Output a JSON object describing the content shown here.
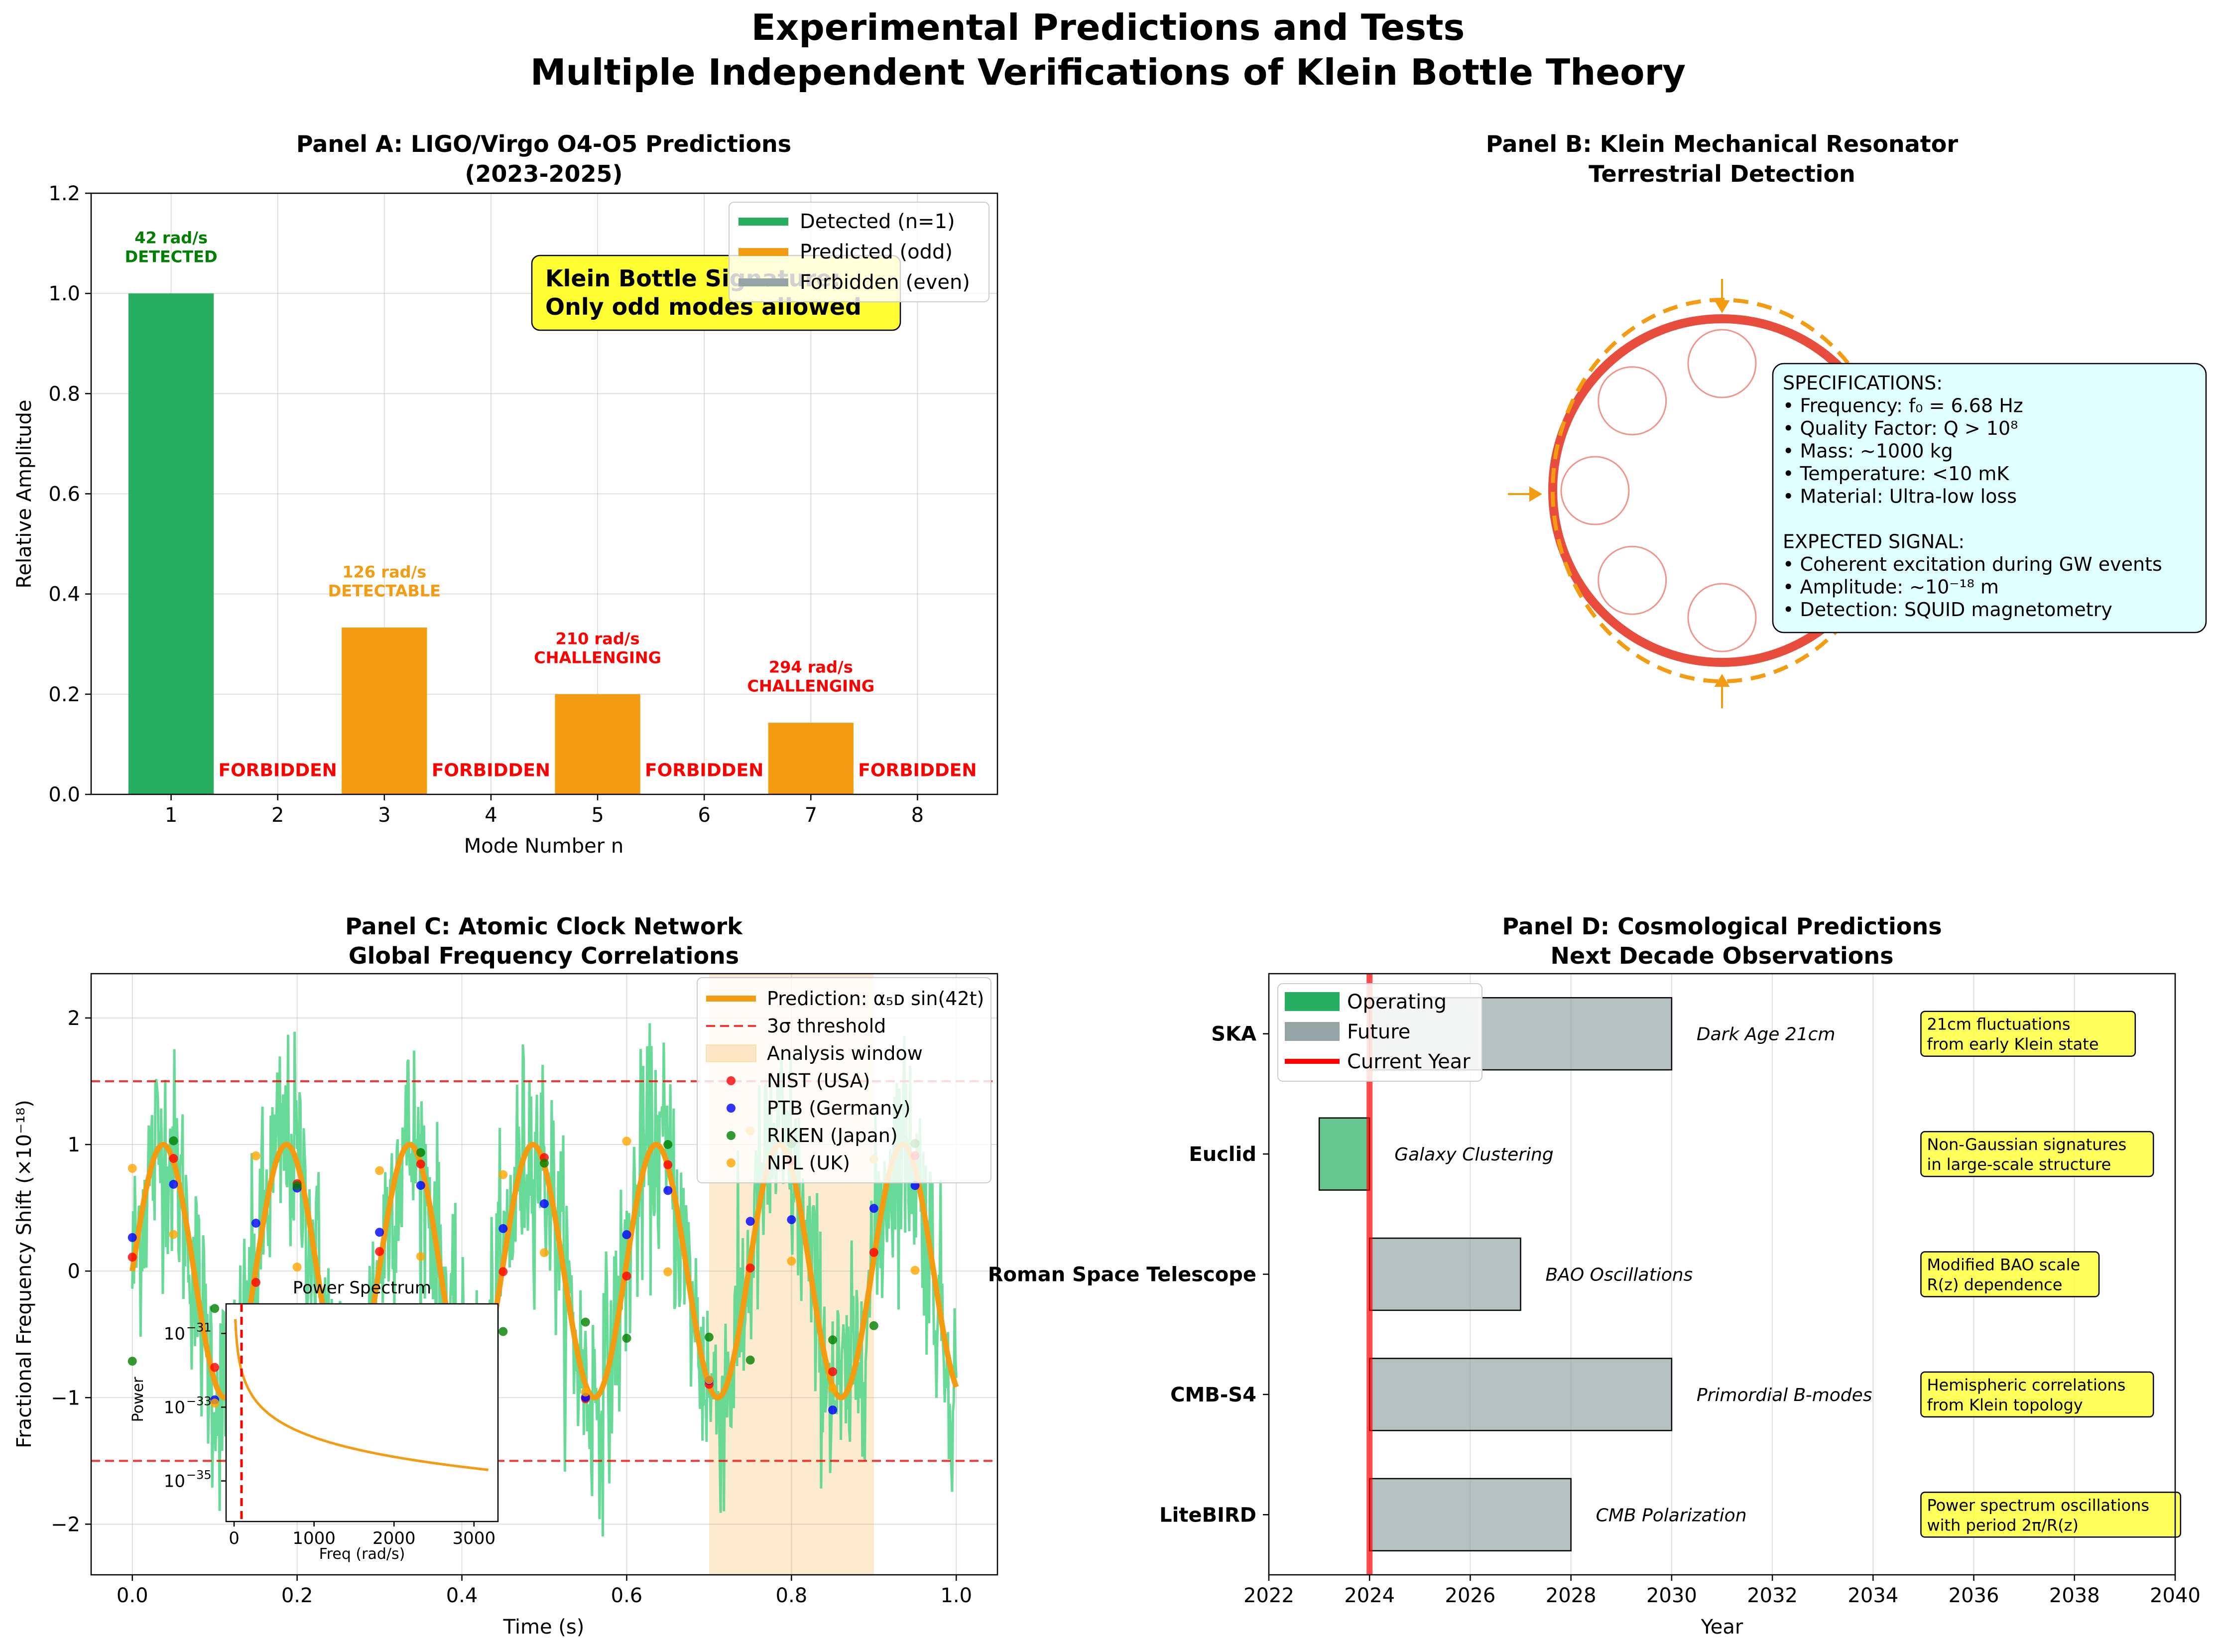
{
  "figure": {
    "title_line1": "Experimental Predictions and Tests",
    "title_line2": "Multiple Independent Verifications of Klein Bottle Theory"
  },
  "colors": {
    "green": "#27ae60",
    "orange": "#f39c12",
    "gray": "#95a5a6",
    "red": "#ff0000",
    "ring": "#e74c3c",
    "signal": "#58d68d",
    "yellow": "#ffff33",
    "spec_bg": "#e0ffff"
  },
  "panelA": {
    "title_line1": "Panel A: LIGO/Virgo O4-O5 Predictions",
    "title_line2": "(2023-2025)",
    "xlabel": "Mode Number n",
    "ylabel": "Relative Amplitude",
    "annotation_line1": "Klein Bottle Signature:",
    "annotation_line2": "Only odd modes allowed",
    "forbidden_label": "FORBIDDEN",
    "legend": [
      "Detected (n=1)",
      "Predicted (odd)",
      "Forbidden (even)"
    ],
    "chart_data": {
      "type": "bar",
      "categories": [
        "1",
        "2",
        "3",
        "4",
        "5",
        "6",
        "7",
        "8"
      ],
      "values": [
        1.0,
        0,
        0.333,
        0,
        0.2,
        0,
        0.143,
        0
      ],
      "status": [
        "detected",
        "forbidden",
        "predicted",
        "forbidden",
        "predicted",
        "forbidden",
        "predicted",
        "forbidden"
      ],
      "bar_labels": [
        {
          "mode": 1,
          "line1": "42 rad/s",
          "line2": "DETECTED",
          "color": "#008000"
        },
        {
          "mode": 3,
          "line1": "126 rad/s",
          "line2": "DETECTABLE",
          "color": "#f39c12"
        },
        {
          "mode": 5,
          "line1": "210 rad/s",
          "line2": "CHALLENGING",
          "color": "#ff0000"
        },
        {
          "mode": 7,
          "line1": "294 rad/s",
          "line2": "CHALLENGING",
          "color": "#ff0000"
        }
      ],
      "ylim": [
        0,
        1.2
      ],
      "yticks": [
        "0.0",
        "0.2",
        "0.4",
        "0.6",
        "0.8",
        "1.0",
        "1.2"
      ],
      "grid": true,
      "legend_position": "top-right"
    }
  },
  "panelB": {
    "title_line1": "Panel B: Klein Mechanical Resonator",
    "title_line2": "Terrestrial Detection",
    "spec_lines": [
      "SPECIFICATIONS:",
      "• Frequency: f₀ = 6.68 Hz",
      "• Quality Factor: Q > 10⁸",
      "• Mass: ~1000 kg",
      "• Temperature: <10 mK",
      "• Material: Ultra-low loss",
      "",
      "EXPECTED SIGNAL:",
      "• Coherent excitation during GW events",
      "• Amplitude: ~10⁻¹⁸ m",
      "• Detection: SQUID magnetometry"
    ]
  },
  "panelC": {
    "title_line1": "Panel C: Atomic Clock Network",
    "title_line2": "Global Frequency Correlations",
    "xlabel": "Time (s)",
    "ylabel": "Fractional Frequency Shift (×10⁻¹⁸)",
    "legend": [
      "Prediction: α₅ᴅ sin(42t)",
      "3σ threshold",
      "Analysis window",
      "NIST (USA)",
      "PTB (Germany)",
      "RIKEN (Japan)",
      "NPL (UK)"
    ],
    "inset": {
      "title": "Power Spectrum",
      "xlabel": "Freq (rad/s)",
      "ylabel": "Power",
      "xticks": [
        "0",
        "1000",
        "2000",
        "3000"
      ],
      "ytick_base": "10",
      "ytick_exponents": [
        "−31",
        "−33",
        "−35"
      ]
    },
    "chart_data": {
      "type": "line",
      "xlim": [
        -0.05,
        1.05
      ],
      "ylim": [
        -2.4,
        2.35
      ],
      "xticks": [
        "0.0",
        "0.2",
        "0.4",
        "0.6",
        "0.8",
        "1.0"
      ],
      "yticks": [
        "−2",
        "−1",
        "0",
        "1",
        "2"
      ],
      "prediction": {
        "amplitude": 1.0,
        "omega": 42
      },
      "threshold": 1.5,
      "analysis_window": [
        0.7,
        0.9
      ],
      "noise_std": 0.45,
      "stations": [
        {
          "name": "NIST (USA)",
          "color": "#ff0000",
          "phase_offset": 0.0
        },
        {
          "name": "PTB (Germany)",
          "color": "#0000ff",
          "phase_offset": 0.05
        },
        {
          "name": "RIKEN (Japan)",
          "color": "#008000",
          "phase_offset": -0.1
        },
        {
          "name": "NPL (UK)",
          "color": "#ffa500",
          "phase_offset": 0.15
        }
      ],
      "station_times": [
        0.0,
        0.05,
        0.1,
        0.15,
        0.2,
        0.25,
        0.3,
        0.35,
        0.4,
        0.45,
        0.5,
        0.55,
        0.6,
        0.65,
        0.7,
        0.75,
        0.8,
        0.85,
        0.9,
        0.95
      ],
      "grid": true,
      "legend_position": "top-right"
    }
  },
  "panelD": {
    "title_line1": "Panel D: Cosmological Predictions",
    "title_line2": "Next Decade Observations",
    "xlabel": "Year",
    "legend": [
      "Operating",
      "Future",
      "Current Year"
    ],
    "chart_data": {
      "type": "bar",
      "orientation": "horizontal",
      "xlim": [
        2022,
        2040
      ],
      "xticks": [
        "2022",
        "2024",
        "2026",
        "2028",
        "2030",
        "2032",
        "2034",
        "2036",
        "2038",
        "2040"
      ],
      "current_year": 2024,
      "missions": [
        {
          "name": "LiteBIRD",
          "start": 2024,
          "end": 2028,
          "status": "future",
          "measurement": "CMB Polarization",
          "prediction": [
            "Power spectrum oscillations",
            "with period 2π/R(z)"
          ]
        },
        {
          "name": "CMB-S4",
          "start": 2024,
          "end": 2030,
          "status": "future",
          "measurement": "Primordial B-modes",
          "prediction": [
            "Hemispheric correlations",
            "from Klein topology"
          ]
        },
        {
          "name": "Roman Space Telescope",
          "start": 2024,
          "end": 2027,
          "status": "future",
          "measurement": "BAO Oscillations",
          "prediction": [
            "Modified BAO scale",
            "R(z) dependence"
          ]
        },
        {
          "name": "Euclid",
          "start": 2023,
          "end": 2024,
          "status": "operating",
          "measurement": "Galaxy Clustering",
          "prediction": [
            "Non-Gaussian signatures",
            "in large-scale structure"
          ]
        },
        {
          "name": "SKA",
          "start": 2024,
          "end": 2030,
          "status": "future",
          "measurement": "Dark Age 21cm",
          "prediction": [
            "21cm fluctuations",
            "from early Klein state"
          ]
        }
      ],
      "grid": true,
      "legend_position": "top-left"
    }
  }
}
